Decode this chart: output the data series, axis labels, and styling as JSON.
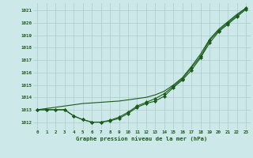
{
  "title": "Graphe pression niveau de la mer (hPa)",
  "bg_color": "#cce8e8",
  "grid_color": "#aacccc",
  "line_color": "#1a5c1a",
  "marker_color": "#1a5c1a",
  "label_color": "#1a5c1a",
  "ylabel_ticks": [
    1012,
    1013,
    1014,
    1015,
    1016,
    1017,
    1018,
    1019,
    1020,
    1021
  ],
  "xlim": [
    -0.5,
    23.5
  ],
  "ylim": [
    1011.4,
    1021.6
  ],
  "line1_x": [
    0,
    1,
    2,
    3,
    4,
    5,
    6,
    7,
    8,
    9,
    10,
    11,
    12,
    13,
    14,
    15,
    16,
    17,
    18,
    19,
    20,
    21,
    22,
    23
  ],
  "line1": [
    1013.0,
    1013.0,
    1013.0,
    1013.0,
    1012.5,
    1012.2,
    1012.0,
    1012.0,
    1012.1,
    1012.3,
    1012.7,
    1013.2,
    1013.5,
    1013.7,
    1014.1,
    1014.8,
    1015.4,
    1016.2,
    1017.2,
    1018.4,
    1019.3,
    1019.9,
    1020.5,
    1021.1
  ],
  "line2_x": [
    0,
    1,
    2,
    3,
    4,
    5,
    6,
    7,
    8,
    9,
    10,
    11,
    12,
    13,
    14,
    15,
    16,
    17,
    18,
    19,
    20,
    21,
    22,
    23
  ],
  "line2": [
    1013.0,
    1013.0,
    1013.0,
    1013.0,
    1012.5,
    1012.2,
    1012.0,
    1012.0,
    1012.15,
    1012.4,
    1012.8,
    1013.3,
    1013.6,
    1013.9,
    1014.3,
    1014.9,
    1015.5,
    1016.4,
    1017.3,
    1018.6,
    1019.4,
    1020.0,
    1020.6,
    1021.2
  ],
  "line3_x": [
    0,
    1,
    2,
    3,
    4,
    5,
    6,
    7,
    8,
    9,
    10,
    11,
    12,
    13,
    14,
    15,
    16,
    17,
    18,
    19,
    20,
    21,
    22,
    23
  ],
  "line3": [
    1013.0,
    1013.1,
    1013.2,
    1013.3,
    1013.4,
    1013.5,
    1013.55,
    1013.6,
    1013.65,
    1013.7,
    1013.8,
    1013.9,
    1014.0,
    1014.2,
    1014.5,
    1015.0,
    1015.6,
    1016.5,
    1017.5,
    1018.7,
    1019.5,
    1020.1,
    1020.7,
    1021.2
  ]
}
